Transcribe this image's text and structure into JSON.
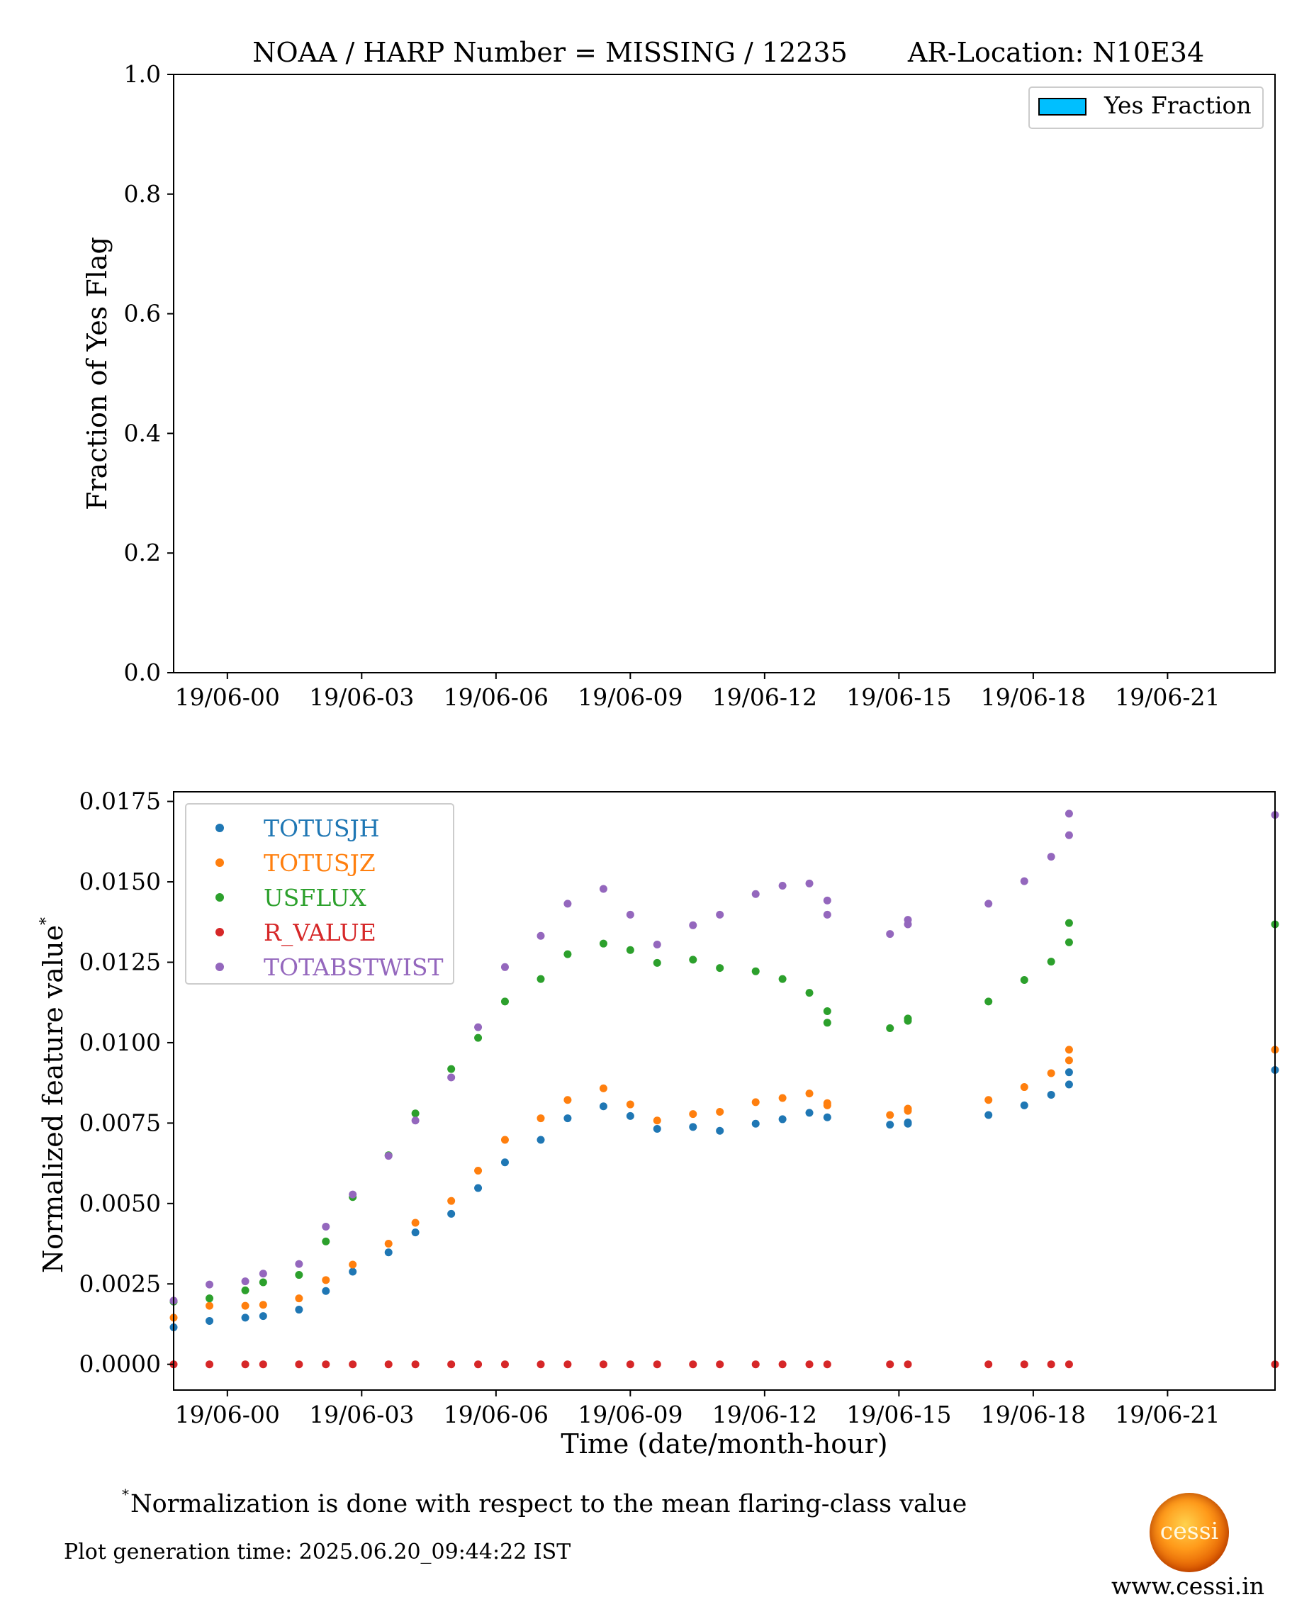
{
  "header": {
    "title": "NOAA / HARP Number = MISSING / 12235",
    "location": "AR-Location: N10E34"
  },
  "top_chart": {
    "ylabel": "Fraction of Yes Flag",
    "legend_label": "Yes Fraction",
    "legend_color": "#00bfff",
    "x_tick_labels": [
      "19/06-00",
      "19/06-03",
      "19/06-06",
      "19/06-09",
      "19/06-12",
      "19/06-15",
      "19/06-18",
      "19/06-21"
    ],
    "y_tick_labels": [
      "0.0",
      "0.2",
      "0.4",
      "0.6",
      "0.8",
      "1.0"
    ]
  },
  "bottom_chart": {
    "xlabel": "Time (date/month-hour)",
    "ylabel": "Normalized feature value",
    "ylabel_marker": "*",
    "x_tick_labels": [
      "19/06-00",
      "19/06-03",
      "19/06-06",
      "19/06-09",
      "19/06-12",
      "19/06-15",
      "19/06-18",
      "19/06-21"
    ],
    "y_tick_labels": [
      "0.0000",
      "0.0025",
      "0.0050",
      "0.0075",
      "0.0100",
      "0.0125",
      "0.0150",
      "0.0175"
    ]
  },
  "footer": {
    "footnote_marker": "*",
    "footnote": "Normalization is done with respect to the mean flaring-class value",
    "generation_time": "Plot generation time: 2025.06.20_09:44:22 IST",
    "logo_text": "cessi",
    "website": "www.cessi.in"
  },
  "chart_data": [
    {
      "type": "bar",
      "ylabel": "Fraction of Yes Flag",
      "legend": [
        "Yes Fraction"
      ],
      "legend_placement": "top-right",
      "x_range": [
        "18/06-22:48",
        "19/06-23:24"
      ],
      "ylim": [
        0,
        1
      ],
      "series": [
        {
          "name": "Yes Fraction",
          "color": "#00bfff",
          "values": []
        }
      ]
    },
    {
      "type": "scatter",
      "xlabel": "Time (date/month-hour)",
      "ylabel": "Normalized feature value",
      "legend_placement": "top-left",
      "x_range": [
        "18/06-22:48",
        "19/06-23:24"
      ],
      "ylim": [
        -0.0008,
        0.0178
      ],
      "x": [
        "18/06-22:48",
        "18/06-23:36",
        "19/06-00:24",
        "19/06-00:48",
        "19/06-01:36",
        "19/06-02:12",
        "19/06-02:48",
        "19/06-03:36",
        "19/06-04:12",
        "19/06-05:00",
        "19/06-05:36",
        "19/06-06:12",
        "19/06-07:00",
        "19/06-07:36",
        "19/06-08:24",
        "19/06-09:00",
        "19/06-09:36",
        "19/06-10:24",
        "19/06-11:00",
        "19/06-11:48",
        "19/06-12:24",
        "19/06-13:00",
        "19/06-13:24",
        "19/06-14:48",
        "19/06-15:12",
        "19/06-17:00",
        "19/06-17:48",
        "19/06-18:24",
        "19/06-18:48",
        "19/06-23:24"
      ],
      "series": [
        {
          "name": "TOTUSJH",
          "color": "#1f77b4",
          "values": [
            0.00115,
            0.00135,
            0.00145,
            0.0015,
            0.0017,
            0.00228,
            0.00288,
            0.00348,
            0.0041,
            0.00468,
            0.00548,
            0.00628,
            0.00698,
            0.00765,
            0.00802,
            0.00772,
            0.00732,
            0.00738,
            0.00726,
            0.00748,
            0.00762,
            0.00782,
            0.00768,
            0.00745,
            0.00752,
            0.00775,
            0.00805,
            0.00838,
            0.0087,
            0.00915
          ]
        },
        {
          "name": "TOTUSJZ",
          "color": "#ff7f0e",
          "values": [
            0.00145,
            0.00182,
            0.00182,
            0.00185,
            0.00205,
            0.00262,
            0.0031,
            0.00375,
            0.0044,
            0.00508,
            0.00602,
            0.00698,
            0.00765,
            0.00822,
            0.00858,
            0.00808,
            0.00758,
            0.00778,
            0.00785,
            0.00815,
            0.00828,
            0.00842,
            0.00805,
            0.00775,
            0.00795,
            0.00822,
            0.00862,
            0.00905,
            0.00945,
            0.00978
          ]
        },
        {
          "name": "USFLUX",
          "color": "#2ca02c",
          "values": [
            0.00195,
            0.00205,
            0.0023,
            0.00255,
            0.00278,
            0.00382,
            0.0052,
            0.0065,
            0.0078,
            0.00918,
            0.01015,
            0.01128,
            0.01198,
            0.01275,
            0.01308,
            0.01288,
            0.01248,
            0.01258,
            0.01232,
            0.01222,
            0.01198,
            0.01155,
            0.01098,
            0.01045,
            0.01075,
            0.01128,
            0.01195,
            0.01252,
            0.01372,
            0.01368
          ]
        },
        {
          "name": "R_VALUE",
          "color": "#d62728",
          "values": [
            0,
            0,
            0,
            0,
            0,
            0,
            0,
            0,
            0,
            0,
            0,
            0,
            0,
            0,
            0,
            0,
            0,
            0,
            0,
            0,
            0,
            0,
            0,
            0,
            0,
            0,
            0,
            0,
            0,
            0
          ]
        },
        {
          "name": "TOTABSTWIST",
          "color": "#9467bd",
          "values": [
            0.00198,
            0.00248,
            0.00258,
            0.00282,
            0.00312,
            0.00428,
            0.00528,
            0.00648,
            0.00758,
            0.00892,
            0.01048,
            0.01235,
            0.01332,
            0.01432,
            0.01478,
            0.01398,
            0.01305,
            0.01365,
            0.01398,
            0.01462,
            0.01488,
            0.01495,
            0.01442,
            0.01338,
            0.01382,
            0.01432,
            0.01502,
            0.01578,
            0.01712,
            0.01708
          ]
        }
      ],
      "extra_points": [
        {
          "series": "USFLUX",
          "x": [
            "19/06-13:24",
            "19/06-15:12",
            "19/06-18:48"
          ],
          "values": [
            0.01062,
            0.01068,
            0.01312
          ]
        },
        {
          "series": "TOTABSTWIST",
          "x": [
            "19/06-13:24",
            "19/06-15:12",
            "19/06-18:48"
          ],
          "values": [
            0.01398,
            0.01368,
            0.01645
          ]
        },
        {
          "series": "TOTUSJZ",
          "x": [
            "19/06-13:24",
            "19/06-15:12",
            "19/06-18:48"
          ],
          "values": [
            0.00812,
            0.00788,
            0.00978
          ]
        },
        {
          "series": "TOTUSJH",
          "x": [
            "19/06-15:12",
            "19/06-18:48"
          ],
          "values": [
            0.00748,
            0.00908
          ]
        }
      ]
    }
  ]
}
